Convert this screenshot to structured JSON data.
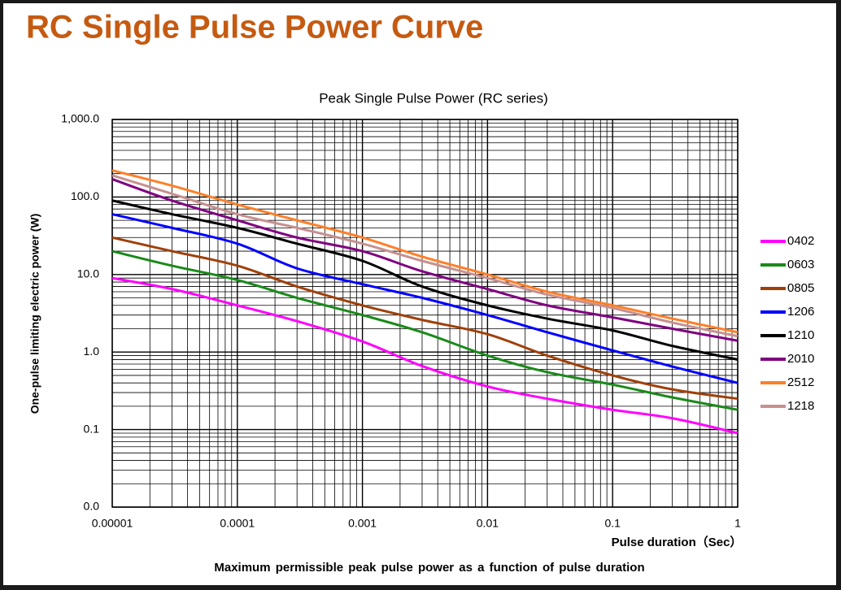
{
  "slide_title": "RC Single Pulse Power Curve",
  "caption": "Maximum permissible peak pulse power as a function of pulse duration",
  "chart_data": {
    "type": "line",
    "title": "Peak Single Pulse Power (RC series)",
    "y_label": "One-pulse limiting electric power (W)",
    "x_label": "Pulse duration（Sec）",
    "x_log": true,
    "y_log": true,
    "grid": true,
    "legend": "right",
    "x": [
      1e-05,
      3e-05,
      0.0001,
      0.0003,
      0.001,
      0.003,
      0.01,
      0.03,
      0.1,
      0.3,
      1
    ],
    "xlim": [
      1e-05,
      1
    ],
    "xticks": [
      {
        "value": 1e-05,
        "label": "0.00001"
      },
      0.0001,
      0.001,
      0.01,
      0.1,
      1
    ],
    "ylim": [
      0.01,
      1000
    ],
    "yticks": [
      {
        "value": 0.01,
        "label": "0.0"
      },
      0.1,
      {
        "value": 1,
        "label": "1.0"
      },
      {
        "value": 10,
        "label": "10.0"
      },
      {
        "value": 100,
        "label": "100.0"
      },
      {
        "value": 1000,
        "label": "1,000.0"
      }
    ],
    "series": [
      {
        "name": "0402",
        "color": "#ff00ff",
        "values": [
          9,
          6.5,
          4,
          2.5,
          1.37,
          0.66,
          0.36,
          0.25,
          0.18,
          0.14,
          0.09
        ]
      },
      {
        "name": "0603",
        "color": "#1a8a1a",
        "values": [
          20,
          13,
          8.5,
          5,
          3,
          1.8,
          0.9,
          0.55,
          0.38,
          0.26,
          0.18
        ]
      },
      {
        "name": "0805",
        "color": "#a0400a",
        "values": [
          30,
          20,
          13,
          7,
          4,
          2.6,
          1.7,
          0.9,
          0.5,
          0.33,
          0.25
        ]
      },
      {
        "name": "1206",
        "color": "#0000ff",
        "values": [
          60,
          40,
          25,
          12,
          7.5,
          5,
          3,
          1.8,
          1.05,
          0.65,
          0.4
        ]
      },
      {
        "name": "1210",
        "color": "#000000",
        "values": [
          90,
          60,
          40,
          25,
          15,
          7,
          4,
          2.7,
          1.9,
          1.2,
          0.8
        ]
      },
      {
        "name": "2010",
        "color": "#800080",
        "values": [
          170,
          90,
          50,
          30,
          20,
          11,
          6.5,
          4,
          2.8,
          2,
          1.4
        ]
      },
      {
        "name": "2512",
        "color": "#ff7f27",
        "values": [
          220,
          140,
          80,
          50,
          30,
          17,
          10,
          6,
          4,
          2.7,
          1.8
        ]
      },
      {
        "name": "1218",
        "color": "#c89090",
        "values": [
          190,
          110,
          60,
          40,
          25,
          15,
          9,
          5.5,
          3.7,
          2.4,
          1.6
        ]
      }
    ]
  }
}
